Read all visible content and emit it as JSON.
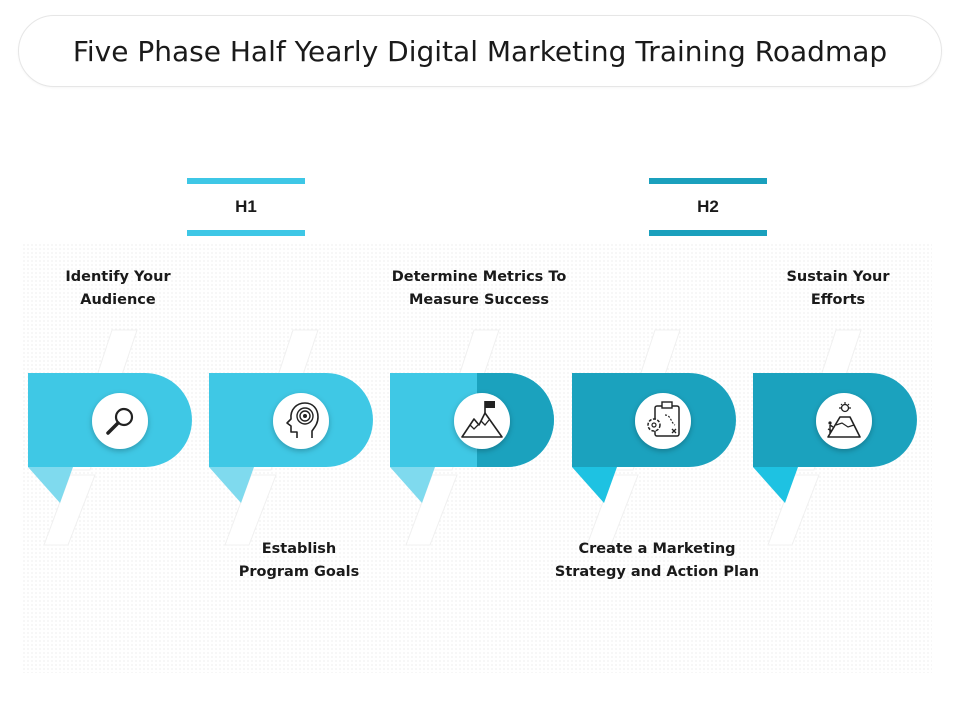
{
  "title": "Five Phase Half Yearly Digital Marketing Training Roadmap",
  "halves": [
    {
      "label": "H1"
    },
    {
      "label": "H2"
    }
  ],
  "phases": [
    {
      "lines": [
        "Identify Your",
        "Audience"
      ],
      "icon": "magnifier-icon",
      "position": "top"
    },
    {
      "lines": [
        "Establish",
        "Program Goals"
      ],
      "icon": "head-target-icon",
      "position": "bottom"
    },
    {
      "lines": [
        "Determine Metrics To",
        "Measure Success"
      ],
      "icon": "mountain-flag-icon",
      "position": "top"
    },
    {
      "lines": [
        "Create a Marketing",
        "Strategy and Action Plan"
      ],
      "icon": "strategy-clipboard-icon",
      "position": "bottom"
    },
    {
      "lines": [
        "Sustain Your",
        "Efforts"
      ],
      "icon": "summit-climber-icon",
      "position": "top"
    }
  ],
  "colors": {
    "light": "#3fc8e5",
    "light_tail": "#7fdaee",
    "dark": "#1ba2be",
    "dark_tail": "#1ec2e2",
    "half1": "#3ec7e6",
    "half2": "#1aa0bd"
  }
}
